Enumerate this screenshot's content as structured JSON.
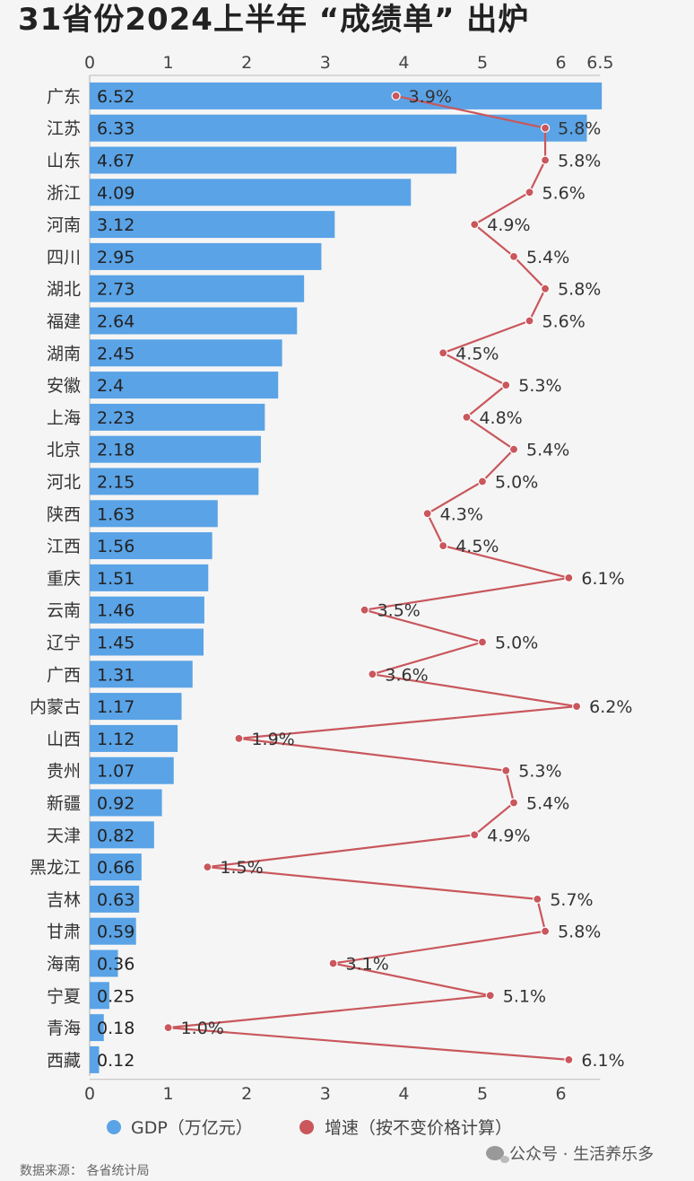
{
  "title": "31省份2024上半年 “成绩单” 出炉",
  "source": "数据来源： 各省统计局",
  "watermark": "公众号 · 生活养乐多",
  "chart_data": {
    "type": "bar",
    "orientation": "horizontal",
    "categories": [
      "广东",
      "江苏",
      "山东",
      "浙江",
      "河南",
      "四川",
      "湖北",
      "福建",
      "湖南",
      "安徽",
      "上海",
      "北京",
      "河北",
      "陕西",
      "江西",
      "重庆",
      "云南",
      "辽宁",
      "广西",
      "内蒙古",
      "山西",
      "贵州",
      "新疆",
      "天津",
      "黑龙江",
      "吉林",
      "甘肃",
      "海南",
      "宁夏",
      "青海",
      "西藏"
    ],
    "series": [
      {
        "name": "GDP（万亿元）",
        "type": "bar",
        "color": "#5aa3e6",
        "values": [
          6.52,
          6.33,
          4.67,
          4.09,
          3.12,
          2.95,
          2.73,
          2.64,
          2.45,
          2.4,
          2.23,
          2.18,
          2.15,
          1.63,
          1.56,
          1.51,
          1.46,
          1.45,
          1.31,
          1.17,
          1.12,
          1.07,
          0.92,
          0.82,
          0.66,
          0.63,
          0.59,
          0.36,
          0.25,
          0.18,
          0.12
        ],
        "labels": [
          "6.52",
          "6.33",
          "4.67",
          "4.09",
          "3.12",
          "2.95",
          "2.73",
          "2.64",
          "2.45",
          "2.4",
          "2.23",
          "2.18",
          "2.15",
          "1.63",
          "1.56",
          "1.51",
          "1.46",
          "1.45",
          "1.31",
          "1.17",
          "1.12",
          "1.07",
          "0.92",
          "0.82",
          "0.66",
          "0.63",
          "0.59",
          "0.36",
          "0.25",
          "0.18",
          "0.12"
        ]
      },
      {
        "name": "增速（按不变价格计算）",
        "type": "line",
        "color": "#c9575c",
        "values": [
          3.9,
          5.8,
          5.8,
          5.6,
          4.9,
          5.4,
          5.8,
          5.6,
          4.5,
          5.3,
          4.8,
          5.4,
          5.0,
          4.3,
          4.5,
          6.1,
          3.5,
          5.0,
          3.6,
          6.2,
          1.9,
          5.3,
          5.4,
          4.9,
          1.5,
          5.7,
          5.8,
          3.1,
          5.1,
          1.0,
          6.1
        ],
        "labels": [
          "3.9%",
          "5.8%",
          "5.8%",
          "5.6%",
          "4.9%",
          "5.4%",
          "5.8%",
          "5.6%",
          "4.5%",
          "5.3%",
          "4.8%",
          "5.4%",
          "5.0%",
          "4.3%",
          "4.5%",
          "6.1%",
          "3.5%",
          "5.0%",
          "3.6%",
          "6.2%",
          "1.9%",
          "5.3%",
          "5.4%",
          "4.9%",
          "1.5%",
          "5.7%",
          "5.8%",
          "3.1%",
          "5.1%",
          "1.0%",
          "6.1%"
        ]
      }
    ],
    "x_axis_top": {
      "ticks": [
        0,
        1,
        2,
        3,
        4,
        5,
        6,
        6.5
      ],
      "tick_labels": [
        "0",
        "1",
        "2",
        "3",
        "4",
        "5",
        "6",
        "6.5"
      ]
    },
    "x_axis_bottom": {
      "ticks": [
        0,
        1,
        2,
        3,
        4,
        5,
        6
      ],
      "tick_labels": [
        "0",
        "1",
        "2",
        "3",
        "4",
        "5",
        "6"
      ]
    },
    "xlim": [
      0,
      6.5
    ],
    "legend": {
      "position": "bottom-left",
      "items": [
        "GDP（万亿元）",
        "增速（按不变价格计算）"
      ]
    },
    "grid": false
  }
}
